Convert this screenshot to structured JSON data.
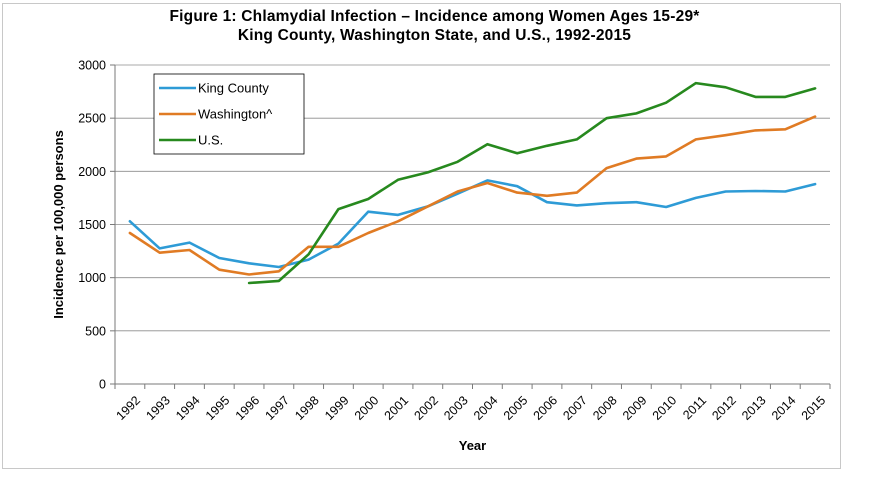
{
  "chart_data": {
    "type": "line",
    "title": "Figure 1: Chlamydial Infection – Incidence among Women Ages 15-29*",
    "subtitle": "King County, Washington State, and U.S., 1992-2015",
    "xlabel": "Year",
    "ylabel": "Incidence per 100,000 persons",
    "ylim": [
      0,
      3000
    ],
    "yticks": [
      0,
      500,
      1000,
      1500,
      2000,
      2500,
      3000
    ],
    "categories": [
      "1992",
      "1993",
      "1994",
      "1995",
      "1996",
      "1997",
      "1998",
      "1999",
      "2000",
      "2001",
      "2002",
      "2003",
      "2004",
      "2005",
      "2006",
      "2007",
      "2008",
      "2009",
      "2010",
      "2011",
      "2012",
      "2013",
      "2014",
      "2015"
    ],
    "grid": true,
    "legend_position": "top-left",
    "series": [
      {
        "name": "King County",
        "color": "#2e9bd6",
        "values": [
          1530,
          1275,
          1330,
          1185,
          1135,
          1100,
          1170,
          1320,
          1620,
          1590,
          1670,
          1790,
          1915,
          1860,
          1710,
          1680,
          1700,
          1710,
          1665,
          1750,
          1810,
          1815,
          1810,
          1880
        ]
      },
      {
        "name": "Washington^",
        "color": "#e07b24",
        "values": [
          1420,
          1235,
          1260,
          1075,
          1030,
          1060,
          1290,
          1290,
          1420,
          1530,
          1670,
          1810,
          1890,
          1800,
          1770,
          1800,
          2030,
          2120,
          2140,
          2300,
          2340,
          2385,
          2395,
          2515
        ]
      },
      {
        "name": "U.S.",
        "color": "#27891e",
        "values": [
          null,
          null,
          null,
          null,
          950,
          970,
          1220,
          1645,
          1740,
          1920,
          1990,
          2090,
          2255,
          2170,
          2240,
          2300,
          2500,
          2545,
          2645,
          2830,
          2790,
          2700,
          2700,
          2780
        ]
      }
    ]
  }
}
